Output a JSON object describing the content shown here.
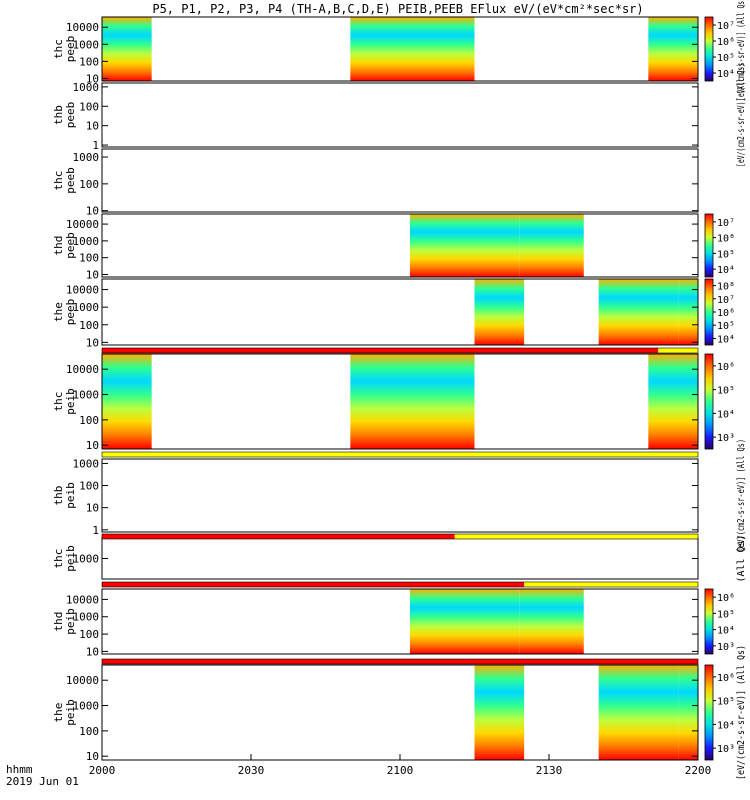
{
  "chart_data": {
    "type": "heatmap",
    "title": "P5, P1, P2, P3, P4 (TH-A,B,C,D,E) PEIB,PEEB EFlux eV/(eV*cm²*sec*sr)",
    "x_axis": {
      "label_line1": "hhmm",
      "label_line2": "2019 Jun 01",
      "ticks": [
        "2000",
        "2030",
        "2100",
        "2130",
        "2200"
      ],
      "range": [
        0,
        120
      ]
    },
    "colormap": [
      "#2a0060",
      "#1a1aff",
      "#0090ff",
      "#00e0e0",
      "#30ff90",
      "#c8ff30",
      "#ffc800",
      "#ff6a00",
      "#ff0000"
    ],
    "flag_colors": {
      "red": "#ff0000",
      "yellow": "#ffff00"
    },
    "panels": [
      {
        "id": "thc-peeb-1",
        "ylabel1": "thc",
        "ylabel2": "peeb",
        "yticks": [
          "10",
          "100",
          "1000",
          "10000"
        ],
        "log_range": [
          0.85,
          4.6
        ],
        "segments": [
          [
            0,
            10
          ],
          [
            50,
            75
          ],
          [
            110,
            120
          ]
        ],
        "colorbar": {
          "ticks": [
            "10⁴",
            "10⁵",
            "10⁶",
            "10⁷"
          ],
          "label": "[eV/(cm2-s-sr-eV)] (All Qs)"
        }
      },
      {
        "id": "thb-peeb",
        "ylabel1": "thb",
        "ylabel2": "peeb",
        "yticks": [
          "1",
          "10",
          "100",
          "1000"
        ],
        "log_range": [
          -0.1,
          3.2
        ],
        "segments": [],
        "colorbar": {
          "ticks": [],
          "label": "[eV/(cm2-s-sr-eV)] (All Qs)"
        }
      },
      {
        "id": "thc-peeb-2",
        "ylabel1": "thc",
        "ylabel2": "peeb",
        "yticks": [
          "10",
          "100",
          "1000"
        ],
        "log_range": [
          0.95,
          3.3
        ],
        "segments": [],
        "colorbar": {
          "ticks": [],
          "label": ""
        }
      },
      {
        "id": "thd-peeb",
        "ylabel1": "thd",
        "ylabel2": "peeb",
        "yticks": [
          "10",
          "100",
          "1000",
          "10000"
        ],
        "log_range": [
          0.85,
          4.6
        ],
        "segments": [
          [
            62,
            84
          ],
          [
            84,
            97
          ]
        ],
        "colorbar": {
          "ticks": [
            "10⁴",
            "10⁵",
            "10⁶",
            "10⁷"
          ],
          "label": ""
        }
      },
      {
        "id": "the-peeb",
        "ylabel1": "the",
        "ylabel2": "peeb",
        "yticks": [
          "10",
          "100",
          "1000",
          "10000"
        ],
        "log_range": [
          0.85,
          4.6
        ],
        "segments": [
          [
            75,
            85
          ],
          [
            100,
            116
          ],
          [
            116,
            120
          ]
        ],
        "colorbar": {
          "ticks": [
            "10⁴",
            "10⁵",
            "10⁶",
            "10⁷",
            "10⁸"
          ],
          "label": ""
        }
      },
      {
        "id": "thc-peib",
        "ylabel1": "thc",
        "ylabel2": "peib",
        "yticks": [
          "10",
          "100",
          "1000",
          "10000"
        ],
        "log_range": [
          0.85,
          4.6
        ],
        "segments": [
          [
            0,
            10
          ],
          [
            50,
            75
          ],
          [
            110,
            120
          ]
        ],
        "colorbar": {
          "ticks": [
            "10³",
            "10⁴",
            "10⁵",
            "10⁶"
          ],
          "label": ""
        }
      },
      {
        "id": "thb-peib",
        "ylabel1": "thb",
        "ylabel2": "peib",
        "yticks": [
          "1",
          "10",
          "100",
          "1000"
        ],
        "log_range": [
          -0.1,
          3.2
        ],
        "segments": [],
        "colorbar": {
          "ticks": [],
          "label": "[eV/(cm2-s-sr-eV)] (All Qs)"
        }
      },
      {
        "id": "thc-peib-2",
        "ylabel1": "thc",
        "ylabel2": "peib",
        "yticks": [
          "1000"
        ],
        "log_range": [
          2.0,
          4.0
        ],
        "segments": [],
        "colorbar": {
          "ticks": [],
          "label": "(All Qs)"
        }
      },
      {
        "id": "thd-peib",
        "ylabel1": "thd",
        "ylabel2": "peib",
        "yticks": [
          "10",
          "100",
          "1000",
          "10000"
        ],
        "log_range": [
          0.85,
          4.6
        ],
        "segments": [
          [
            62,
            84
          ],
          [
            84,
            97
          ]
        ],
        "colorbar": {
          "ticks": [
            "10³",
            "10⁴",
            "10⁵",
            "10⁶"
          ],
          "label": ""
        }
      },
      {
        "id": "the-peib",
        "ylabel1": "the",
        "ylabel2": "peib",
        "yticks": [
          "10",
          "100",
          "1000",
          "10000"
        ],
        "log_range": [
          0.85,
          4.6
        ],
        "segments": [
          [
            75,
            85
          ],
          [
            100,
            116
          ],
          [
            116,
            120
          ]
        ],
        "colorbar": {
          "ticks": [
            "10³",
            "10⁴",
            "10⁵",
            "10⁶"
          ],
          "label": "[eV/(cm2-s-sr-eV)] (All Qs)"
        }
      }
    ],
    "flag_bars": [
      {
        "after_panel": 4,
        "parts": [
          {
            "color": "red",
            "from": 0,
            "to": 112
          },
          {
            "color": "yellow",
            "from": 112,
            "to": 120
          }
        ]
      },
      {
        "after_panel": 5,
        "parts": [
          {
            "color": "yellow",
            "from": 0,
            "to": 120
          }
        ]
      },
      {
        "after_panel": 6,
        "parts": [
          {
            "color": "red",
            "from": 0,
            "to": 71
          },
          {
            "color": "yellow",
            "from": 71,
            "to": 120
          }
        ]
      },
      {
        "after_panel": 7,
        "parts": [
          {
            "color": "red",
            "from": 0,
            "to": 85
          },
          {
            "color": "yellow",
            "from": 85,
            "to": 120
          }
        ]
      },
      {
        "after_panel": 8,
        "parts": [
          {
            "color": "red",
            "from": 0,
            "to": 120
          }
        ]
      }
    ]
  }
}
